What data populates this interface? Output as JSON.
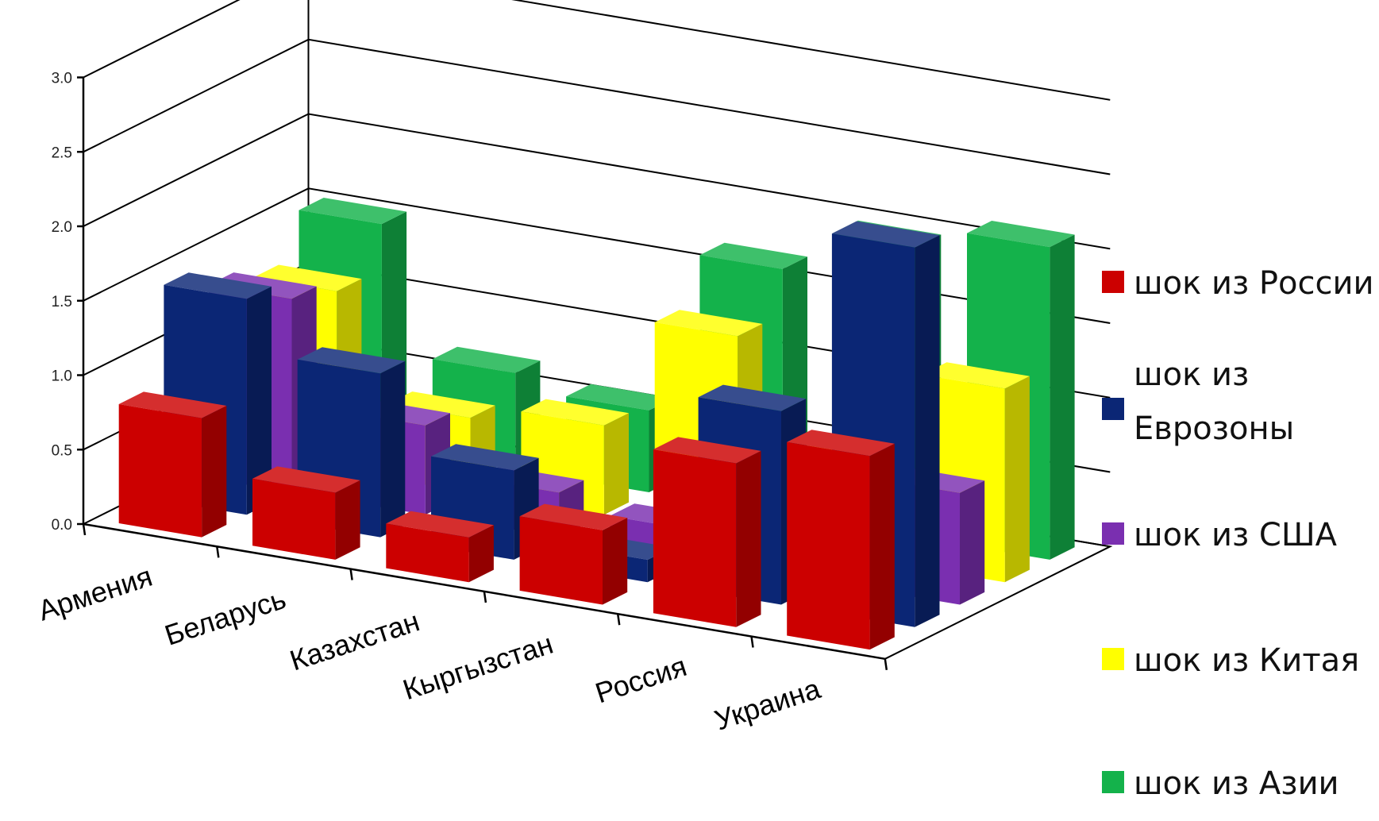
{
  "chart_data": {
    "type": "bar",
    "style": "3d-clustered-depth",
    "categories": [
      "Армения",
      "Беларусь",
      "Казахстан",
      "Кыргызстан",
      "Россия",
      "Украина"
    ],
    "series": [
      {
        "name": "шок из России",
        "color": "#cc0000",
        "values": [
          0.8,
          0.45,
          0.3,
          0.5,
          1.1,
          1.3
        ]
      },
      {
        "name": "шок из Еврозоны",
        "color": "#0b2675",
        "values": [
          1.45,
          1.1,
          0.6,
          0.15,
          1.3,
          2.55
        ]
      },
      {
        "name": "шок из США",
        "color": "#7a2fb0",
        "values": [
          1.3,
          0.6,
          0.3,
          0.2,
          0.65,
          0.75
        ]
      },
      {
        "name": "шок из Китая",
        "color": "#ffff00",
        "values": [
          1.2,
          0.5,
          0.6,
          1.35,
          0.6,
          1.3
        ]
      },
      {
        "name": "шок из Азии",
        "color": "#14b24b",
        "values": [
          1.5,
          0.65,
          0.55,
          1.65,
          1.95,
          2.1
        ]
      }
    ],
    "ylim": [
      0,
      3.0
    ],
    "yticks": [
      "0.0",
      "0.5",
      "1.0",
      "1.5",
      "2.0",
      "2.5",
      "3.0"
    ],
    "grid": true,
    "legend_position": "right"
  }
}
